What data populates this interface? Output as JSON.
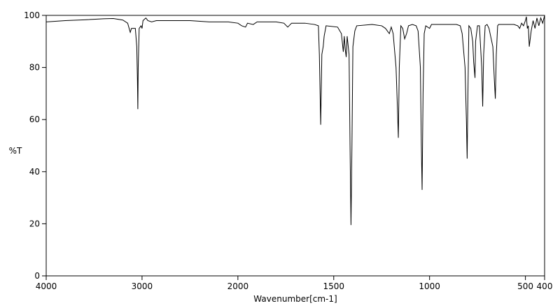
{
  "chart_data": {
    "type": "line",
    "xlabel": "Wavenumber[cm-1]",
    "ylabel": "%T",
    "xlim": [
      4000,
      400
    ],
    "ylim": [
      0,
      100
    ],
    "xticks": [
      4000,
      3000,
      2000,
      1500,
      1000,
      500,
      400
    ],
    "yticks": [
      0,
      20,
      40,
      60,
      80,
      100
    ],
    "x_scale_break": 2000,
    "x_scale_factor": 2,
    "color": "#000000",
    "x": [
      4000,
      3800,
      3600,
      3400,
      3300,
      3200,
      3150,
      3123,
      3110,
      3090,
      3070,
      3055,
      3048,
      3044,
      3040,
      3030,
      3010,
      3000,
      2990,
      2960,
      2940,
      2900,
      2850,
      2700,
      2500,
      2300,
      2100,
      2000,
      1980,
      1960,
      1950,
      1920,
      1900,
      1800,
      1760,
      1740,
      1720,
      1650,
      1600,
      1580,
      1575,
      1568,
      1562,
      1555,
      1550,
      1540,
      1480,
      1460,
      1450,
      1445,
      1440,
      1435,
      1430,
      1420,
      1415,
      1410,
      1405,
      1400,
      1390,
      1380,
      1300,
      1250,
      1230,
      1210,
      1200,
      1190,
      1175,
      1168,
      1163,
      1158,
      1150,
      1140,
      1130,
      1120,
      1110,
      1090,
      1070,
      1060,
      1048,
      1043,
      1039,
      1034,
      1028,
      1020,
      1000,
      990,
      900,
      860,
      840,
      830,
      815,
      808,
      804,
      800,
      795,
      785,
      775,
      770,
      763,
      760,
      750,
      740,
      728,
      723,
      718,
      710,
      700,
      690,
      670,
      662,
      657,
      652,
      645,
      640,
      560,
      540,
      530,
      520,
      510,
      500,
      495,
      490,
      485,
      480,
      470,
      460,
      450,
      440,
      430,
      420,
      410,
      400
    ],
    "values": [
      97.5,
      98,
      98.3,
      98.7,
      98.8,
      98.2,
      97,
      93.5,
      95,
      95,
      95,
      88,
      75,
      64,
      80,
      95,
      96,
      95,
      98,
      99,
      98,
      97.5,
      98,
      98,
      98,
      97.5,
      97.5,
      97,
      96,
      95.5,
      97,
      96.5,
      97.5,
      97.5,
      97,
      95.5,
      97,
      97,
      96.5,
      96,
      85,
      58,
      85,
      88,
      92,
      96,
      95.5,
      93,
      86,
      92,
      87,
      84,
      92,
      85,
      50,
      19.5,
      50,
      88,
      94,
      96,
      96.5,
      96,
      95,
      93,
      95.5,
      93,
      80,
      65,
      53,
      80,
      96,
      95,
      91,
      93,
      96,
      96.5,
      96,
      94,
      80,
      50,
      33,
      70,
      93,
      96,
      95,
      96.5,
      96.5,
      96.5,
      96,
      93,
      80,
      60,
      45,
      70,
      96,
      95,
      90,
      82,
      76,
      90,
      96,
      96,
      80,
      65,
      85,
      96,
      96.5,
      95,
      88,
      75,
      68,
      85,
      96,
      96.5,
      96.5,
      96,
      95,
      97,
      96,
      98,
      99.5,
      95,
      96,
      88,
      94,
      98,
      95,
      99,
      96,
      99,
      97,
      100
    ]
  }
}
